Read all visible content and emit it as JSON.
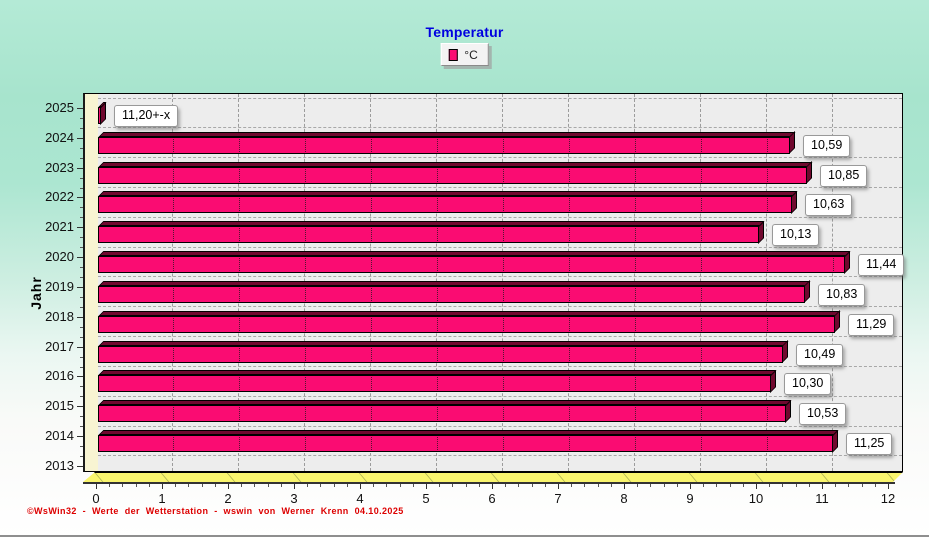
{
  "header": {
    "title": "Temperatur"
  },
  "legend": {
    "label": "°C",
    "swatch_color": "#fa0c72"
  },
  "y_axis": {
    "title": "Jahr"
  },
  "footer": {
    "text": "©WsWin32  -  Werte der Wetterstation  -  wswin von Werner Krenn   04.10.2025"
  },
  "colors": {
    "title": "#0000e0",
    "bar_face": "#fa0c72",
    "bar_shade": "#70082e",
    "plot_background": "#ededed",
    "wall": "#f8f4d2",
    "floor": "#f9f56e",
    "grid": "#9c9c9c",
    "footer_text": "#dd0000",
    "background_top": "#a7e4cd",
    "background_bottom": "#ffffff",
    "value_label_background": "#ffffff"
  },
  "chart_data": {
    "type": "bar",
    "orientation": "horizontal",
    "title": "Temperatur",
    "unit": "°C",
    "ylabel": "Jahr",
    "xlim": [
      0,
      12
    ],
    "grid": true,
    "legend_position": "top-center",
    "legend_entries": [
      "°C"
    ],
    "xticks": [
      "0",
      "1",
      "2",
      "3",
      "4",
      "5",
      "6",
      "7",
      "8",
      "9",
      "10",
      "11",
      "12"
    ],
    "categories": [
      "2025",
      "2024",
      "2023",
      "2022",
      "2021",
      "2020",
      "2019",
      "2018",
      "2017",
      "2016",
      "2015",
      "2014",
      "2013"
    ],
    "values": [
      11.2,
      10.59,
      10.85,
      10.63,
      10.13,
      11.44,
      10.83,
      11.29,
      10.49,
      10.3,
      10.53,
      11.25,
      null
    ],
    "value_labels": [
      "11,20+-x",
      "10,59",
      "10,85",
      "10,63",
      "10,13",
      "11,44",
      "10,83",
      "11,29",
      "10,49",
      "10,30",
      "10,53",
      "11,25",
      null
    ]
  }
}
